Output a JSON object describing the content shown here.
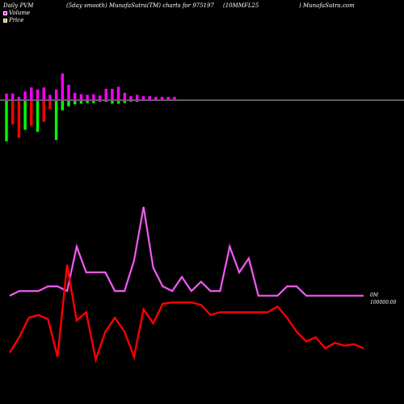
{
  "header": {
    "left": "Daily PVM",
    "mid": "(5day smooth) MunafaSutra(TM) charts for 975197",
    "code": "(10MMFL25",
    "site": ") MunafaSutra.com"
  },
  "legend": [
    {
      "label": "Volume",
      "color": "#ff00ff"
    },
    {
      "label": "Price",
      "color": "#ffa500"
    }
  ],
  "colors": {
    "baseline": "#bbbbbb",
    "up_bar": "#ff00ff",
    "down_green": "#00ff00",
    "down_red": "#ff0000",
    "volume_line": "#cc33cc",
    "volume_line_glow": "#ff66ff",
    "price_line": "#ff0000",
    "background": "#000000"
  },
  "chart_data": {
    "type": "bar+line",
    "volume_bars": [
      {
        "up": 1.0,
        "down": 6.0,
        "down_color": "green"
      },
      {
        "up": 1.0,
        "down": 3.5,
        "down_color": "red"
      },
      {
        "up": 0.5,
        "down": 5.5,
        "down_color": "red"
      },
      {
        "up": 1.3,
        "down": 4.3,
        "down_color": "green"
      },
      {
        "up": 1.9,
        "down": 3.7,
        "down_color": "red"
      },
      {
        "up": 1.6,
        "down": 4.6,
        "down_color": "green"
      },
      {
        "up": 1.9,
        "down": 3.1,
        "down_color": "red"
      },
      {
        "up": 0.8,
        "down": 1.2,
        "down_color": "red"
      },
      {
        "up": 1.6,
        "down": 5.8,
        "down_color": "green"
      },
      {
        "up": 4.0,
        "down": 1.4,
        "down_color": "green"
      },
      {
        "up": 2.3,
        "down": 0.8,
        "down_color": "green"
      },
      {
        "up": 1.1,
        "down": 0.5,
        "down_color": "green"
      },
      {
        "up": 0.9,
        "down": 0.4,
        "down_color": "green"
      },
      {
        "up": 0.8,
        "down": 0.3,
        "down_color": "green"
      },
      {
        "up": 0.9,
        "down": 0.3,
        "down_color": "green"
      },
      {
        "up": 0.7,
        "down": 0.1,
        "down_color": "green"
      },
      {
        "up": 1.7,
        "down": 0.1,
        "down_color": "green"
      },
      {
        "up": 1.7,
        "down": 0.4,
        "down_color": "green"
      },
      {
        "up": 2.0,
        "down": 0.4,
        "down_color": "green"
      },
      {
        "up": 1.1,
        "down": 0.3,
        "down_color": "green"
      },
      {
        "up": 0.6,
        "down": 0.1,
        "down_color": "green"
      },
      {
        "up": 0.8,
        "down": 0.1,
        "down_color": "green"
      },
      {
        "up": 0.6,
        "down": 0,
        "down_color": "green"
      },
      {
        "up": 0.6,
        "down": 0,
        "down_color": "green"
      },
      {
        "up": 0.5,
        "down": 0,
        "down_color": "green"
      },
      {
        "up": 0.5,
        "down": 0,
        "down_color": "green"
      },
      {
        "up": 0.5,
        "down": 0,
        "down_color": "green"
      },
      {
        "up": 0.5,
        "down": 0,
        "down_color": "green"
      }
    ],
    "volume_line": [
      8,
      10,
      10,
      10,
      12,
      12,
      10,
      29,
      18,
      18,
      18,
      10,
      10,
      23,
      46,
      20,
      12,
      10,
      16,
      10,
      14,
      10,
      10,
      29,
      18,
      24,
      8,
      8,
      8,
      12,
      12,
      8,
      8,
      8,
      8,
      8,
      8,
      8
    ],
    "price_line": [
      37.5,
      43,
      50,
      51,
      49.5,
      36,
      69,
      49,
      52,
      35,
      45,
      50,
      45,
      36,
      53,
      48,
      55,
      55.5,
      55.5,
      55.5,
      54.6,
      51,
      52,
      52,
      52,
      52,
      52,
      52,
      54,
      50,
      45,
      41.5,
      43,
      39,
      41,
      40,
      40.5,
      39
    ],
    "right_labels": [
      "0M",
      "100000.00"
    ]
  }
}
